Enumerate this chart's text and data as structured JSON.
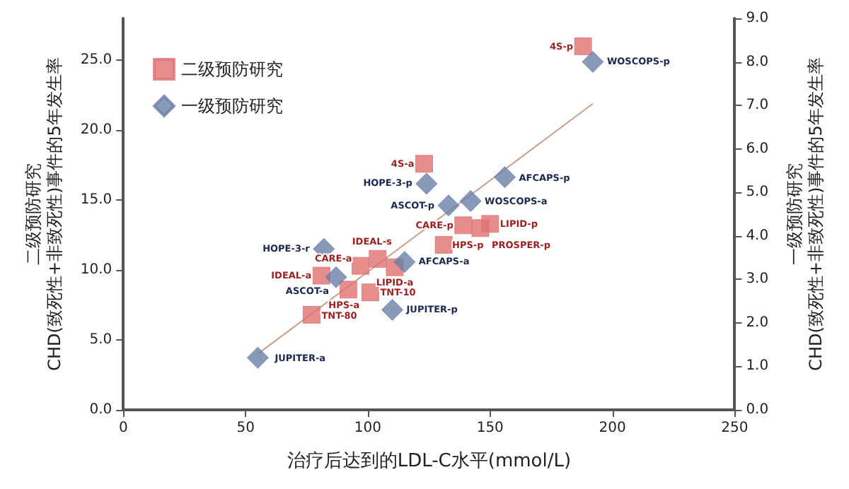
{
  "chart_data": {
    "type": "scatter",
    "xlabel": "治疗后达到的LDL-C水平(mmol/L)",
    "ylabel": "二级预防研究\nCHD(致死性+非致死性)事件的5年发生率",
    "y2label": "一级预防研究\nCHD(致死性+非致死性)事件的5年发生率",
    "xlim": [
      0,
      250
    ],
    "xticks": [
      0,
      50,
      100,
      150,
      200,
      250
    ],
    "ylim": [
      0,
      28
    ],
    "yticks": [
      {
        "value": 0,
        "label": "0.0"
      },
      {
        "value": 5,
        "label": "5.0"
      },
      {
        "value": 10,
        "label": "10.0"
      },
      {
        "value": 15,
        "label": "15.0"
      },
      {
        "value": 20,
        "label": "20.0"
      },
      {
        "value": 25,
        "label": "25.0"
      }
    ],
    "y2lim": [
      0,
      9
    ],
    "y2ticks": [
      {
        "value": 0,
        "label": "0.0"
      },
      {
        "value": 1,
        "label": "1.0"
      },
      {
        "value": 2,
        "label": "2.0"
      },
      {
        "value": 3,
        "label": "3.0"
      },
      {
        "value": 4,
        "label": "4.0"
      },
      {
        "value": 5,
        "label": "5.0"
      },
      {
        "value": 6,
        "label": "6.0"
      },
      {
        "value": 7,
        "label": "7.0"
      },
      {
        "value": 8,
        "label": "8.0"
      },
      {
        "value": 9,
        "label": "9.0"
      }
    ],
    "grid": false,
    "legend": "top left",
    "series": [
      {
        "name": "二级预防研究",
        "color": "#e07272",
        "marker": "square",
        "x": [
          188,
          123,
          139,
          150,
          146,
          131,
          104,
          97,
          111,
          81,
          92,
          101,
          77
        ],
        "values": [
          26.0,
          17.6,
          13.2,
          13.3,
          13.0,
          11.8,
          10.8,
          10.3,
          10.2,
          9.6,
          8.6,
          8.4,
          6.8
        ]
      },
      {
        "name": "一级预防研究",
        "color": "#6a7fa8",
        "marker": "diamond",
        "axis": "y2",
        "x": [
          192,
          124,
          133,
          142,
          156,
          82,
          87,
          115,
          110,
          55
        ],
        "values": [
          8.0,
          5.2,
          4.7,
          4.8,
          5.35,
          3.7,
          3.05,
          3.4,
          2.3,
          1.2
        ]
      },
      {
        "type": "line",
        "color": "#c8a08c",
        "marker": "none",
        "x": [
          55,
          192
        ],
        "values": [
          4.0,
          21.9
        ]
      }
    ],
    "annotations": [
      {
        "text": "4S-p",
        "x": 188,
        "y": 26.0
      },
      {
        "text": "4S-a",
        "x": 123,
        "y": 17.6
      },
      {
        "text": "CARE-p",
        "x": 139,
        "y": 13.2
      },
      {
        "text": "LIPID-p",
        "x": 150,
        "y": 13.3
      },
      {
        "text": "PROSPER-p",
        "x": 146,
        "y": 13.0
      },
      {
        "text": "HPS-p",
        "x": 131,
        "y": 11.8
      },
      {
        "text": "IDEAL-s",
        "x": 104,
        "y": 10.8
      },
      {
        "text": "CARE-a",
        "x": 97,
        "y": 10.3
      },
      {
        "text": "LIPID-a",
        "x": 111,
        "y": 10.2
      },
      {
        "text": "IDEAL-a",
        "x": 81,
        "y": 9.6
      },
      {
        "text": "HPS-a",
        "x": 92,
        "y": 8.6
      },
      {
        "text": "TNT-10",
        "x": 101,
        "y": 8.4
      },
      {
        "text": "TNT-80",
        "x": 77,
        "y": 6.8
      },
      {
        "text": "WOSCOPS-p",
        "x": 192,
        "y": 24.9
      },
      {
        "text": "HOPE-3-p",
        "x": 124,
        "y": 16.2
      },
      {
        "text": "ASCOT-p",
        "x": 133,
        "y": 14.6
      },
      {
        "text": "WOSCOPS-a",
        "x": 142,
        "y": 14.9
      },
      {
        "text": "AFCAPS-p",
        "x": 156,
        "y": 16.6
      },
      {
        "text": "HOPE-3-r",
        "x": 82,
        "y": 11.5
      },
      {
        "text": "ASCOT-a",
        "x": 87,
        "y": 9.5
      },
      {
        "text": "AFCAPS-a",
        "x": 115,
        "y": 10.6
      },
      {
        "text": "JUPITER-p",
        "x": 110,
        "y": 7.2
      },
      {
        "text": "JUPITER-a",
        "x": 55,
        "y": 3.7
      }
    ]
  }
}
